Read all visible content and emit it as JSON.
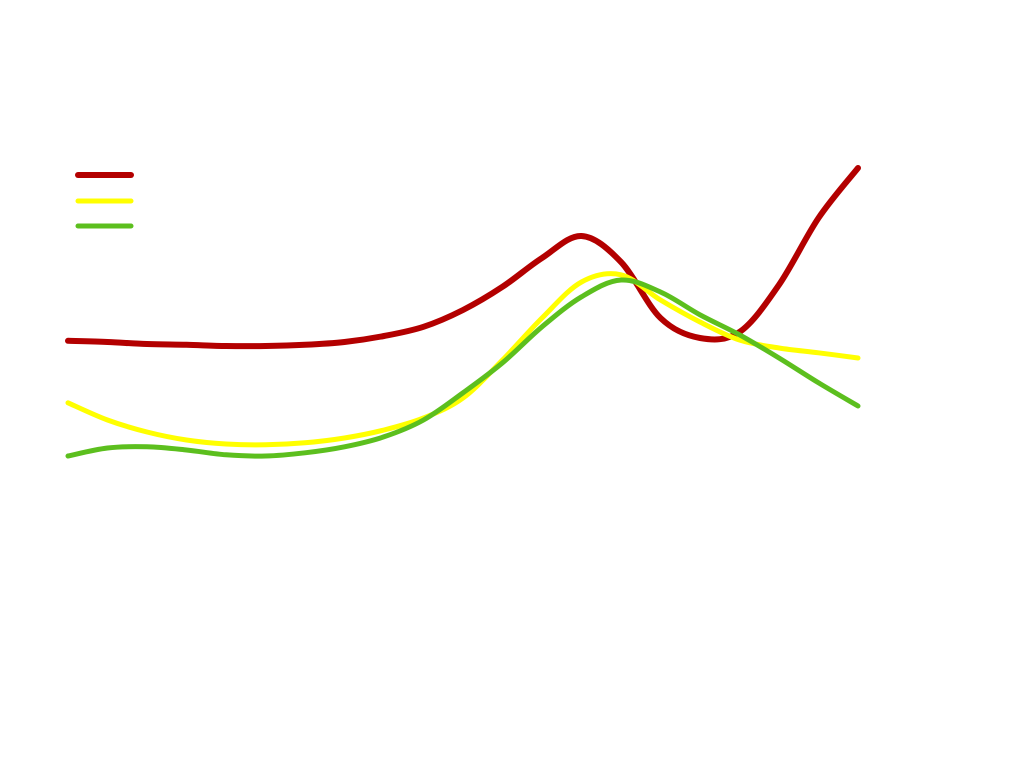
{
  "chart_data": {
    "type": "line",
    "title": "",
    "xlabel": "",
    "ylabel": "",
    "grid": false,
    "legend_position": "top-left",
    "xlim": [
      0,
      10
    ],
    "ylim": [
      -42,
      150
    ],
    "x": [
      0,
      0.5,
      1,
      1.5,
      2,
      2.5,
      3,
      3.5,
      4,
      4.5,
      5,
      5.5,
      6,
      6.5,
      7,
      7.5,
      8,
      8.5,
      9,
      9.5,
      10
    ],
    "series": [
      {
        "name": "",
        "color": "#b30000",
        "values": [
          64.8,
          64.5,
          64,
          63.8,
          63.5,
          63.5,
          63.8,
          64.5,
          66,
          68.3,
          72.5,
          78.3,
          85.5,
          91,
          84.5,
          70.5,
          65.5,
          67,
          78.8,
          95.5,
          108
        ]
      },
      {
        "name": "",
        "color": "#ffff00",
        "values": [
          49.3,
          45,
          42,
          40,
          39,
          38.8,
          39.3,
          40.5,
          42.5,
          45.5,
          50.5,
          60,
          70.5,
          79.5,
          81.3,
          75,
          69.5,
          65,
          63,
          61.8,
          60.5
        ]
      },
      {
        "name": "",
        "color": "#5cbf1e",
        "values": [
          36,
          38,
          38.3,
          37.5,
          36.3,
          36,
          36.8,
          38.3,
          40.8,
          45,
          51.8,
          59.3,
          68.3,
          75.8,
          80,
          77,
          71.3,
          66.3,
          60.5,
          54.3,
          48.5
        ]
      }
    ]
  }
}
